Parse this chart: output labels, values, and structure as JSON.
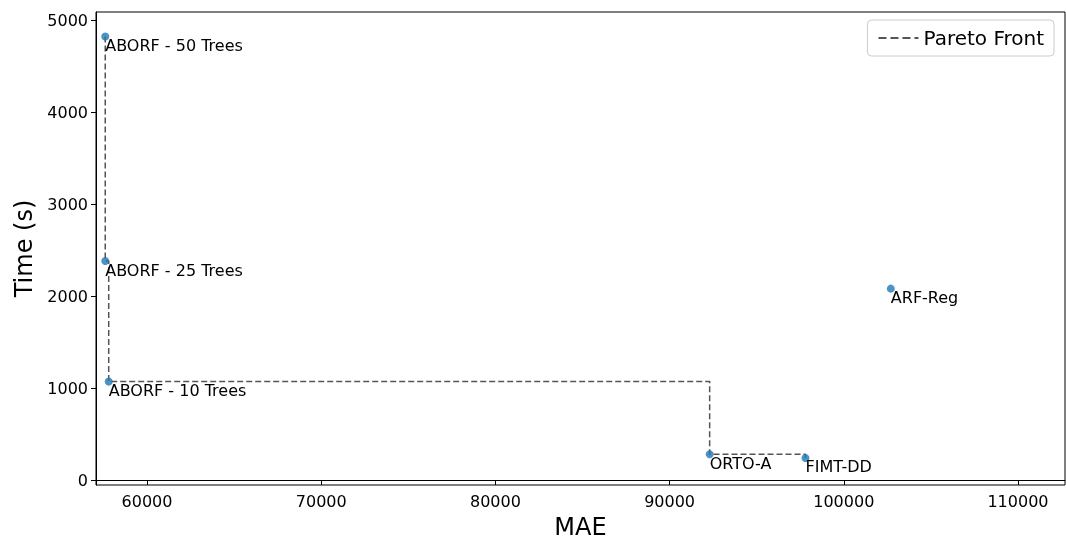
{
  "chart_data": {
    "type": "scatter",
    "xlabel": "MAE",
    "ylabel": "Time (s)",
    "xlim": [
      57070,
      112700
    ],
    "ylim": [
      -54,
      5087
    ],
    "xticks": [
      60000,
      70000,
      80000,
      90000,
      100000,
      110000
    ],
    "yticks": [
      0,
      1000,
      2000,
      3000,
      4000,
      5000
    ],
    "legend": "top right",
    "series": [
      {
        "color": "#1f77b4",
        "marker": "circle",
        "x": [
          57600,
          57600,
          57800,
          92300,
          97800,
          102700
        ],
        "values": [
          4820,
          2380,
          1070,
          280,
          240,
          2080
        ]
      },
      {
        "type": "step",
        "name": "Pareto Front",
        "color": "#555555",
        "line_style": "dashed",
        "x": [
          57600,
          57600,
          57800,
          92300,
          97800
        ],
        "values": [
          4820,
          2380,
          1070,
          280,
          240
        ]
      }
    ],
    "annotations": [
      {
        "text": "ABORF - 50 Trees",
        "x": 57600,
        "y": 4820
      },
      {
        "text": "ABORF - 25 Trees",
        "x": 57600,
        "y": 2380
      },
      {
        "text": "ABORF - 10 Trees",
        "x": 57800,
        "y": 1070
      },
      {
        "text": "ORTO-A",
        "x": 92300,
        "y": 280
      },
      {
        "text": "FIMT-DD",
        "x": 97800,
        "y": 240
      },
      {
        "text": "ARF-Reg",
        "x": 102700,
        "y": 2080
      }
    ]
  }
}
